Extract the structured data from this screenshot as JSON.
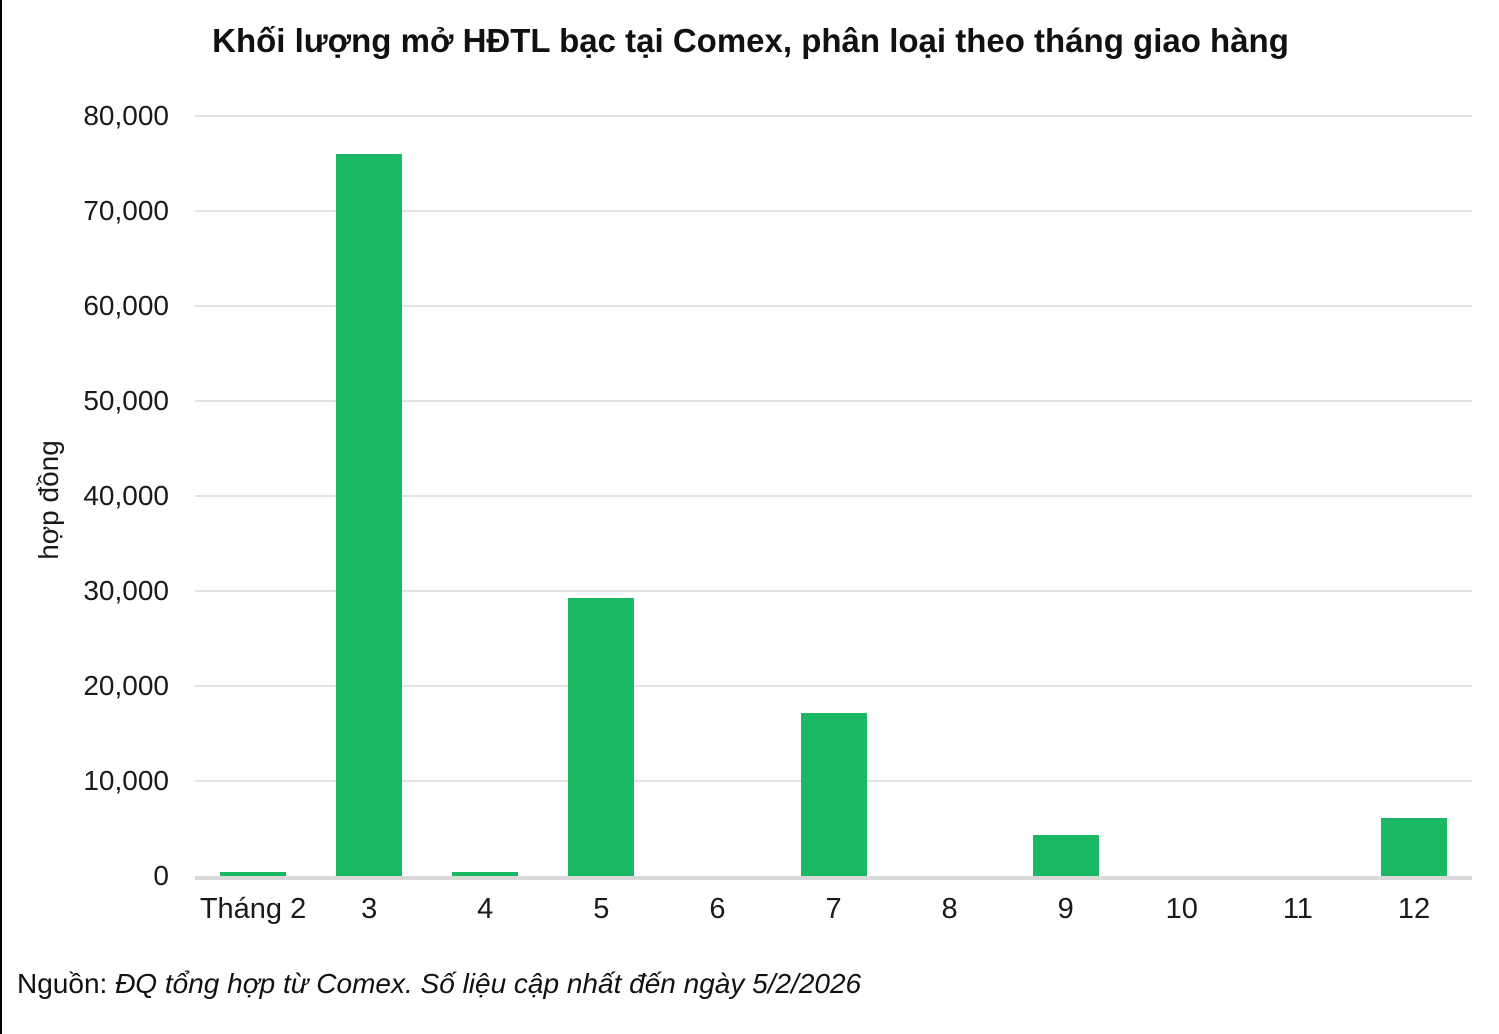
{
  "title": "Khối lượng mở HĐTL bạc tại Comex, phân loại theo tháng giao hàng",
  "source": {
    "prefix": "Nguồn: ",
    "text": "ĐQ tổng hợp từ Comex. Số liệu cập nhất đến ngày 5/2/2026"
  },
  "chart_data": {
    "type": "bar",
    "title": "Khối lượng mở HĐTL bạc tại Comex, phân loại theo tháng giao hàng",
    "categories": [
      "Tháng 2",
      "3",
      "4",
      "5",
      "6",
      "7",
      "8",
      "9",
      "10",
      "11",
      "12"
    ],
    "values": [
      400,
      76000,
      400,
      29300,
      0,
      17200,
      0,
      4300,
      0,
      0,
      6100
    ],
    "xlabel": "",
    "ylabel": "hợp đồng",
    "ylim": [
      0,
      80000
    ],
    "yticks": [
      0,
      10000,
      20000,
      30000,
      40000,
      50000,
      60000,
      70000,
      80000
    ],
    "ytick_labels": [
      "0",
      "10,000",
      "20,000",
      "30,000",
      "40,000",
      "50,000",
      "60,000",
      "70,000",
      "80,000"
    ],
    "grid": true,
    "legend": false,
    "colors": {
      "bar": "#1db864",
      "gridline": "#e3e3e3",
      "baseline": "#d9d9d9",
      "text": "#1a1a1a"
    }
  }
}
